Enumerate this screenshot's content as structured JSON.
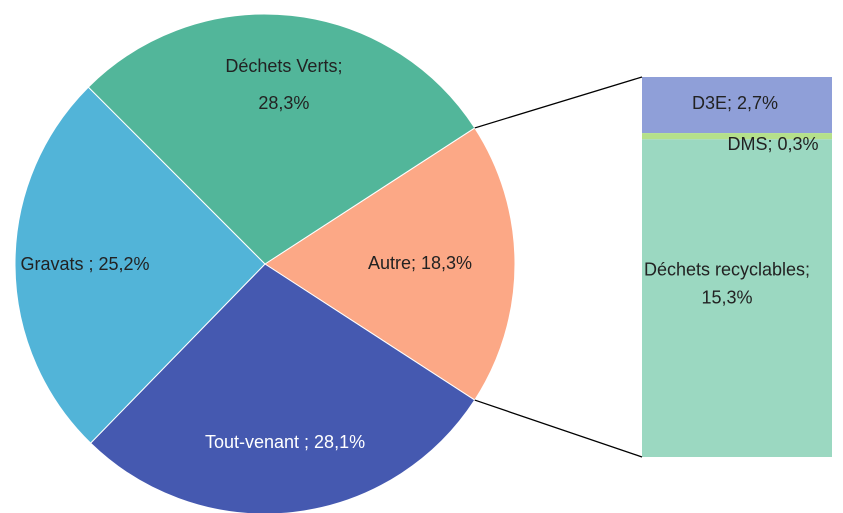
{
  "chart_data": {
    "type": "pie",
    "categories": [
      "Autre;",
      "Tout-venant ;",
      "Gravats ;",
      "Déchets Verts;"
    ],
    "values": [
      18.3,
      28.1,
      25.2,
      28.3
    ],
    "value_labels": [
      "18,3%",
      "28,1%",
      "25,2%",
      "28,3%"
    ],
    "colors": [
      "#fca886",
      "#4559b0",
      "#52b4d8",
      "#52b69a"
    ],
    "sub_bar": {
      "categories": [
        "D3E;",
        "DMS;",
        "Déchets recyclables;"
      ],
      "values": [
        2.7,
        0.3,
        15.3
      ],
      "value_labels": [
        "2,7%",
        "0,3%",
        "15,3%"
      ],
      "colors": [
        "#8f9fd8",
        "#b5e08a",
        "#9bd8c1"
      ]
    }
  }
}
